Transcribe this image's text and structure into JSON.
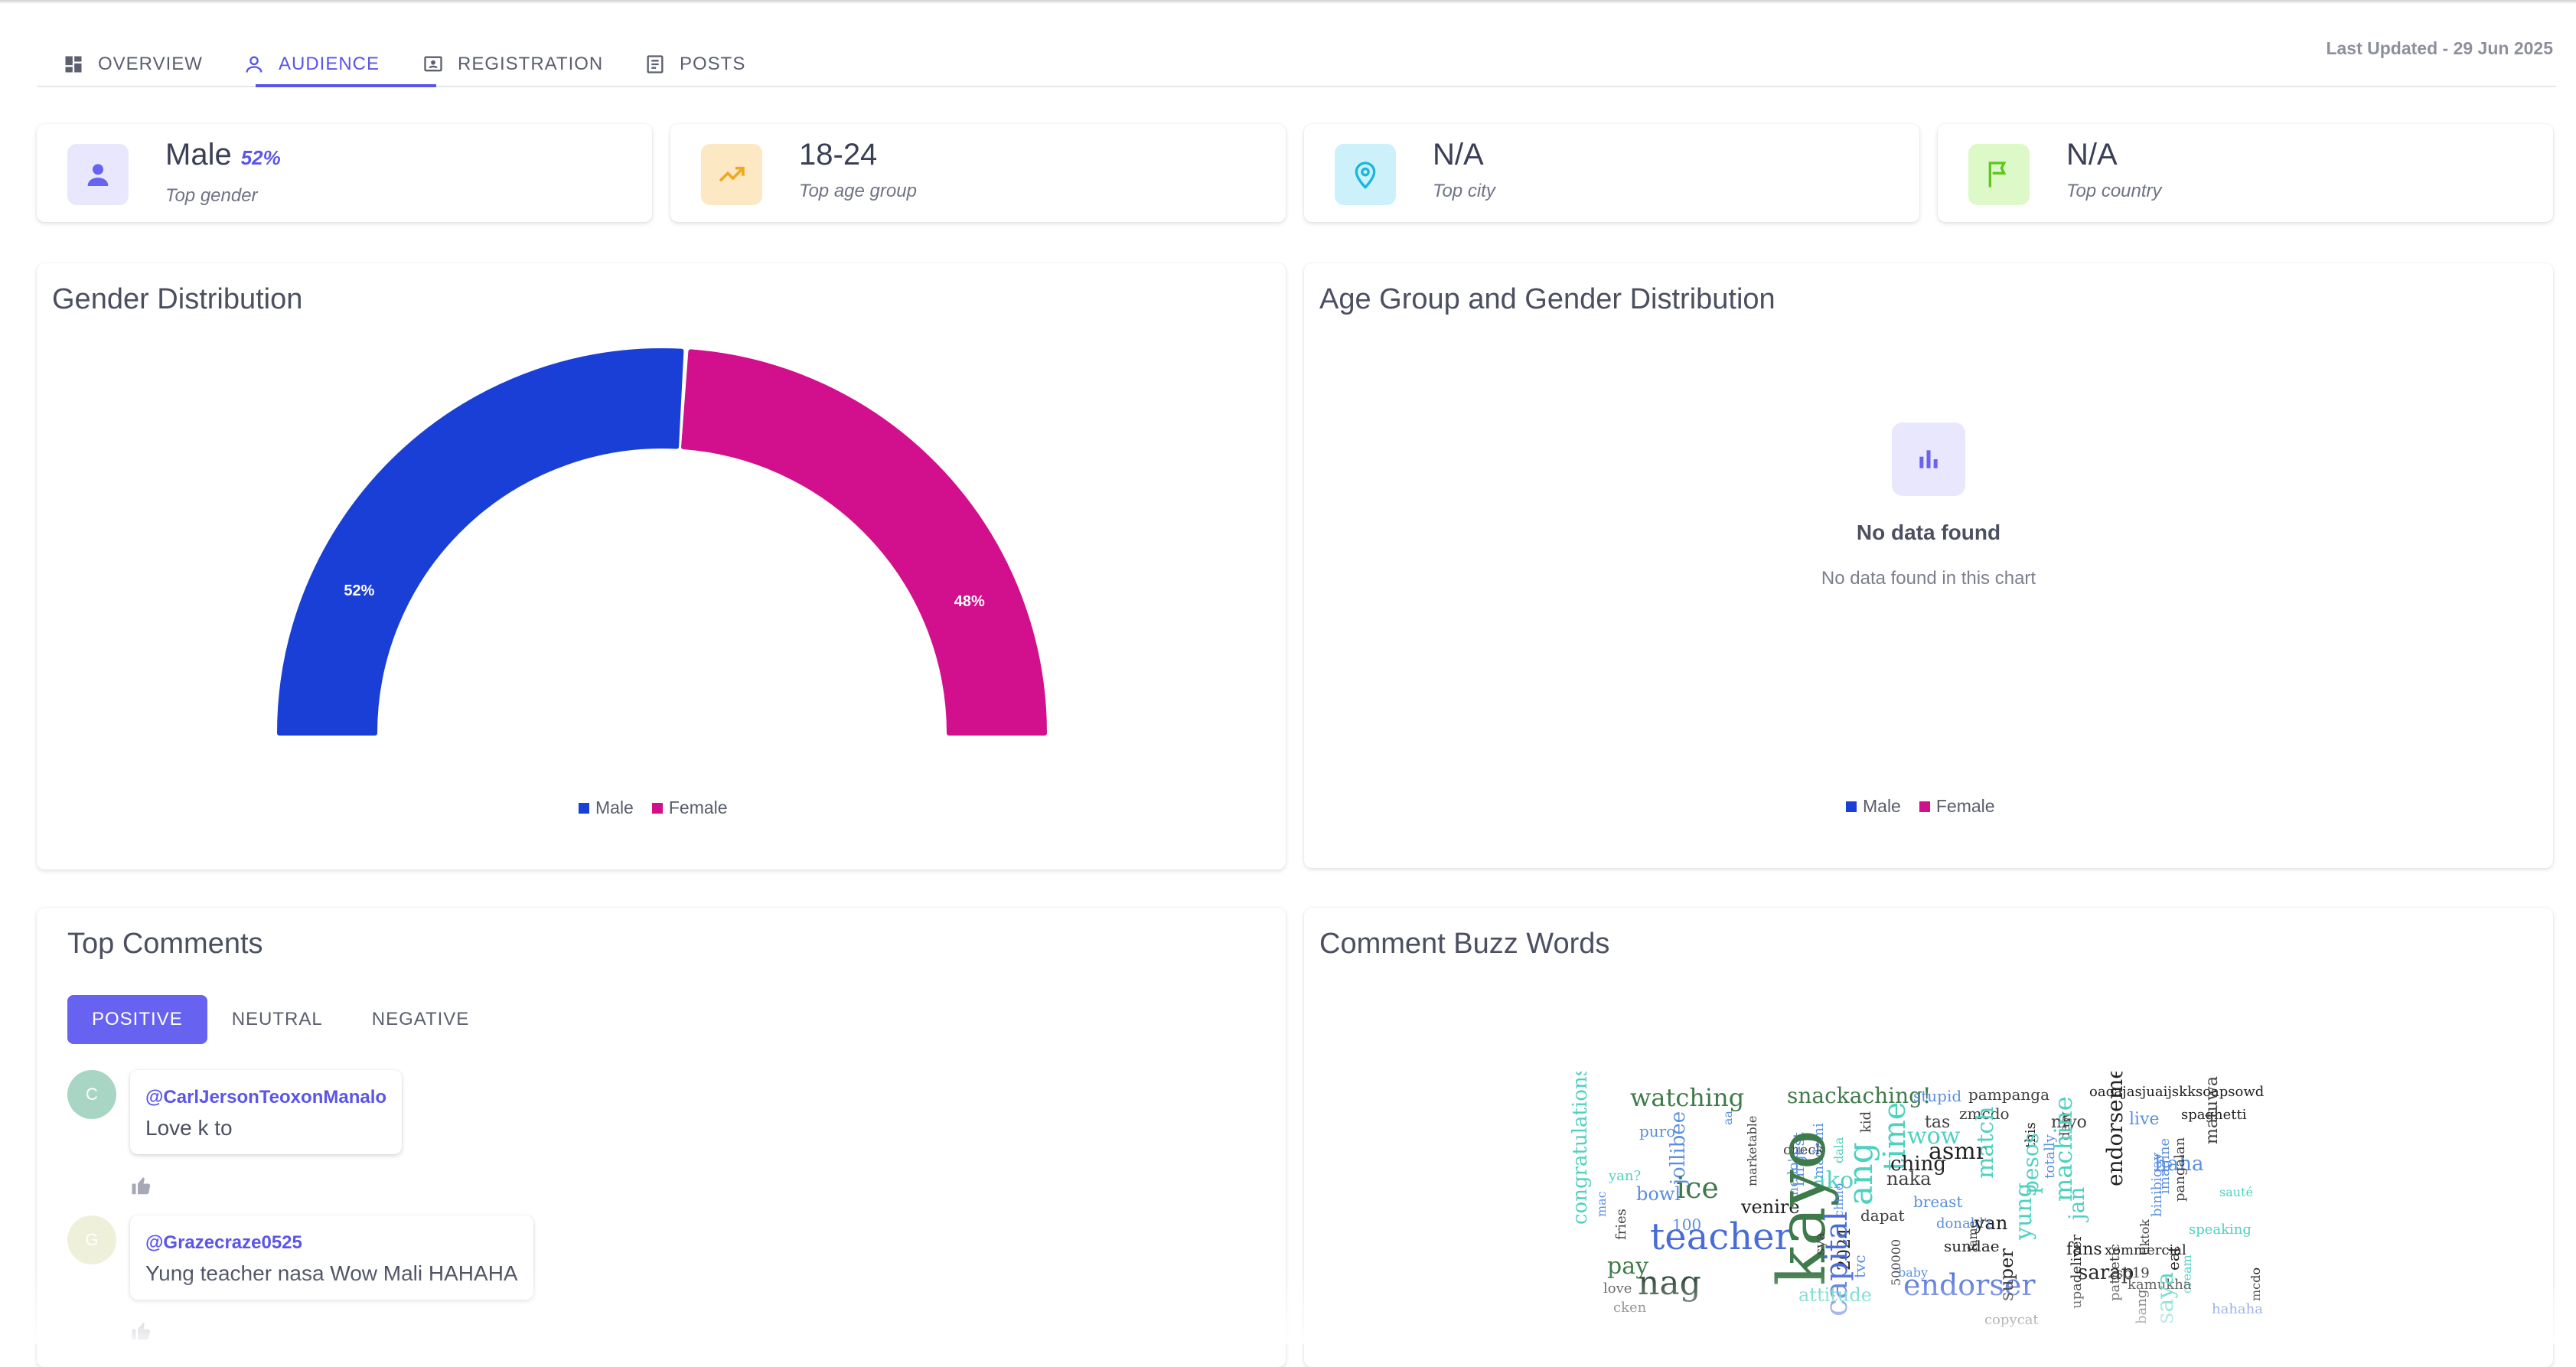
{
  "tabs": [
    {
      "label": "OVERVIEW",
      "icon": "dashboard-icon"
    },
    {
      "label": "AUDIENCE",
      "icon": "person-icon"
    },
    {
      "label": "REGISTRATION",
      "icon": "registration-icon"
    },
    {
      "label": "POSTS",
      "icon": "posts-icon"
    }
  ],
  "active_tab": "AUDIENCE",
  "last_updated": "Last Updated - 29 Jun 2025",
  "stats": [
    {
      "value": "Male",
      "percent": "52%",
      "label": "Top gender",
      "icon": "person-icon",
      "icon_bg": "#e9e7fd",
      "icon_color": "#6762f0"
    },
    {
      "value": "18-24",
      "label": "Top age group",
      "icon": "trending-up-icon",
      "icon_bg": "#fde8c4",
      "icon_color": "#f0a81e"
    },
    {
      "value": "N/A",
      "label": "Top city",
      "icon": "location-pin-icon",
      "icon_bg": "#cdf1fb",
      "icon_color": "#19b6e0"
    },
    {
      "value": "N/A",
      "label": "Top country",
      "icon": "flag-icon",
      "icon_bg": "#def9c8",
      "icon_color": "#5cc71f"
    }
  ],
  "gender_panel": {
    "title": "Gender Distribution",
    "legend": [
      {
        "name": "Male",
        "color": "#1a3fd6"
      },
      {
        "name": "Female",
        "color": "#d20f8c"
      }
    ]
  },
  "chart_data": {
    "type": "pie",
    "subtype": "semicircle-donut",
    "title": "Gender Distribution",
    "categories": [
      "Male",
      "Female"
    ],
    "values": [
      52,
      48
    ],
    "labels": [
      "52%",
      "48%"
    ],
    "colors": [
      "#1a3fd6",
      "#d20f8c"
    ],
    "legend": "bottom"
  },
  "age_panel": {
    "title": "Age Group and Gender Distribution",
    "empty_title": "No data found",
    "empty_subtitle": "No data found in this chart",
    "empty_icon": "bar-chart-icon",
    "legend": [
      {
        "name": "Male",
        "color": "#1a3fd6"
      },
      {
        "name": "Female",
        "color": "#d20f8c"
      }
    ]
  },
  "comments_panel": {
    "title": "Top Comments",
    "tabs": [
      "POSITIVE",
      "NEUTRAL",
      "NEGATIVE"
    ],
    "active_tab": "POSITIVE",
    "comments": [
      {
        "avatar": "C",
        "avatar_color": "#a8d5c4",
        "user": "@CarlJersonTeoxonManalo",
        "text": "Love k to"
      },
      {
        "avatar": "G",
        "avatar_color": "#eef0d9",
        "user": "@Grazecraze0525",
        "text": "Yung teacher nasa Wow Mali HAHAHA"
      }
    ]
  },
  "buzz_panel": {
    "title": "Comment Buzz Words",
    "words": [
      "watching",
      "snackaching!",
      "stupid",
      "pampanga",
      "oaoajasjuaijskksoapsowd",
      "zmcdo",
      "tas",
      "niyo",
      "live",
      "spaghetti",
      "congratulations",
      "puro",
      "jollibee",
      "aa",
      "marketable",
      "mcdo's",
      "madami",
      "kid",
      "check",
      "time",
      "wow",
      "asmr",
      "match",
      "this",
      "daw",
      "endorsement",
      "haha",
      "matuwa",
      "philippines!",
      "yan?",
      "ice",
      "largest",
      "ako",
      "dala",
      "naka",
      "ching",
      "pesos",
      "totally",
      "machine",
      "binibigay",
      "imagine",
      "pangalan",
      "sauté",
      "mac",
      "bowl",
      "venire",
      "ang",
      "dapat",
      "breast",
      "donald's",
      "yan",
      "yung",
      "fans",
      "xommercial",
      "tiktok",
      "speaking",
      "fries",
      "100",
      "teacher",
      "kayo",
      "sya",
      "2024",
      "chino",
      "sundae",
      "fame",
      "jan",
      "sarap",
      "sb19",
      "eat",
      "cream",
      "pay",
      "capital",
      "tvc",
      "500000",
      "baby",
      "endorser",
      "kamukha",
      "saya",
      "mcdo",
      "love",
      "nag",
      "attitude",
      "super",
      "copycat",
      "upadeliver",
      "pathetic",
      "bang",
      "hahaha",
      "cken"
    ]
  }
}
